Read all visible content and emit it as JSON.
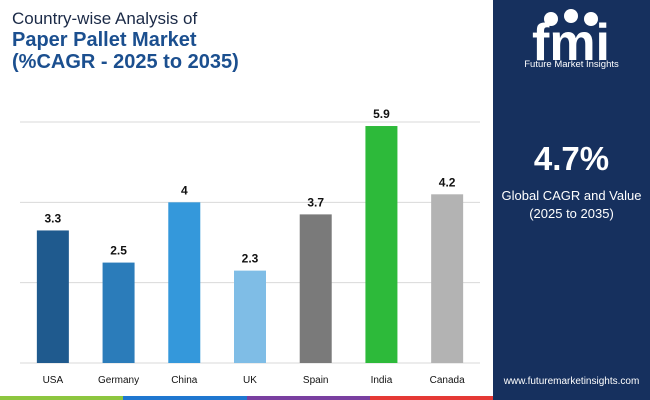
{
  "title": {
    "line1": "Country-wise Analysis of",
    "line2": "Paper Pallet Market",
    "line3": "(%CAGR - 2025 to 2035)"
  },
  "chart_data": {
    "type": "bar",
    "categories": [
      "USA",
      "Germany",
      "China",
      "UK",
      "Spain",
      "India",
      "Canada"
    ],
    "values": [
      3.3,
      2.5,
      4,
      2.3,
      3.7,
      5.9,
      4.2
    ],
    "value_labels": [
      "3.3",
      "2.5",
      "4",
      "2.3",
      "3.7",
      "5.9",
      "4.2"
    ],
    "bar_colors": [
      "#1f5a8e",
      "#2b7cba",
      "#3498db",
      "#7fbde6",
      "#7a7a7a",
      "#2dba3a",
      "#b3b3b3"
    ],
    "ylim": [
      0,
      6
    ],
    "gridlines": [
      0,
      2,
      4,
      6
    ],
    "grid": true,
    "title": "",
    "xlabel": "",
    "ylabel": ""
  },
  "brand": {
    "logo_text": "fmi",
    "name": "Future Market Insights",
    "website": "www.futuremarketinsights.com"
  },
  "highlight": {
    "value": "4.7%",
    "label_line1": "Global CAGR and Value",
    "label_line2": "(2025 to 2035)"
  },
  "colors": {
    "panel_bg": "#16305e",
    "title_dark": "#1b2a47",
    "title_blue": "#1b4f8f",
    "bottom_bar": [
      "#8dc63f",
      "#1f77d0",
      "#7a3fa0",
      "#e53935"
    ]
  }
}
